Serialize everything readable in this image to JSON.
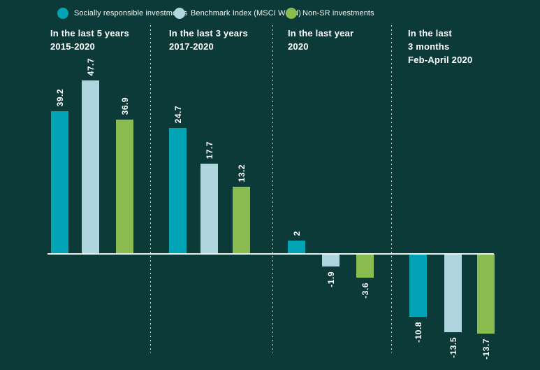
{
  "colors": {
    "background": "#0c3a38",
    "text": "#ffffff",
    "baseline": "#e9f1ec",
    "separator": "#ffffff",
    "series": {
      "sr": "#00a4b4",
      "benchmark": "#afd5df",
      "non_sr": "#8abc50"
    }
  },
  "legend": {
    "items": [
      {
        "key": "sr",
        "label": "Socially responsible investments"
      },
      {
        "key": "benchmark",
        "label": "Benchmark Index (MSCI World)"
      },
      {
        "key": "non_sr",
        "label": "Non-SR investments"
      }
    ]
  },
  "chart_data": {
    "type": "bar",
    "title": "",
    "legend_position": "top",
    "grid": false,
    "baseline_value": 0,
    "categories": [
      "In the last 5 years 2015-2020",
      "In the last 3 years 2017-2020",
      "In the last year 2020",
      "In the last 3 months Feb-April 2020"
    ],
    "series": [
      {
        "name": "Socially responsible investments",
        "values": [
          39.2,
          24.7,
          2,
          -10.8
        ]
      },
      {
        "name": "Benchmark Index (MSCI World)",
        "values": [
          47.7,
          17.7,
          -1.9,
          -13.5
        ]
      },
      {
        "name": "Non-SR investments",
        "values": [
          36.9,
          13.2,
          -3.6,
          -13.7
        ]
      }
    ],
    "groups": [
      {
        "title_lines": [
          "In the last 5 years",
          "2015-2020"
        ],
        "bars": [
          {
            "series": "sr",
            "value": 39.2,
            "label": "39.2"
          },
          {
            "series": "benchmark",
            "value": 47.7,
            "label": "47.7"
          },
          {
            "series": "non_sr",
            "value": 36.9,
            "label": "36.9"
          }
        ]
      },
      {
        "title_lines": [
          "In the last 3 years",
          "2017-2020"
        ],
        "bars": [
          {
            "series": "sr",
            "value": 24.7,
            "label": "24.7"
          },
          {
            "series": "benchmark",
            "value": 17.7,
            "label": "17.7"
          },
          {
            "series": "non_sr",
            "value": 13.2,
            "label": "13.2"
          }
        ]
      },
      {
        "title_lines": [
          "In the last year",
          "2020"
        ],
        "bars": [
          {
            "series": "sr",
            "value": 2,
            "label": "2"
          },
          {
            "series": "benchmark",
            "value": -1.9,
            "label": "-1.9"
          },
          {
            "series": "non_sr",
            "value": -3.6,
            "label": "-3.6"
          }
        ]
      },
      {
        "title_lines": [
          "In the last",
          "3 months",
          "Feb-April 2020"
        ],
        "bars": [
          {
            "series": "sr",
            "value": -10.8,
            "label": "-10.8"
          },
          {
            "series": "benchmark",
            "value": -13.5,
            "label": "-13.5"
          },
          {
            "series": "non_sr",
            "value": -13.7,
            "label": "-13.7"
          }
        ]
      }
    ]
  }
}
